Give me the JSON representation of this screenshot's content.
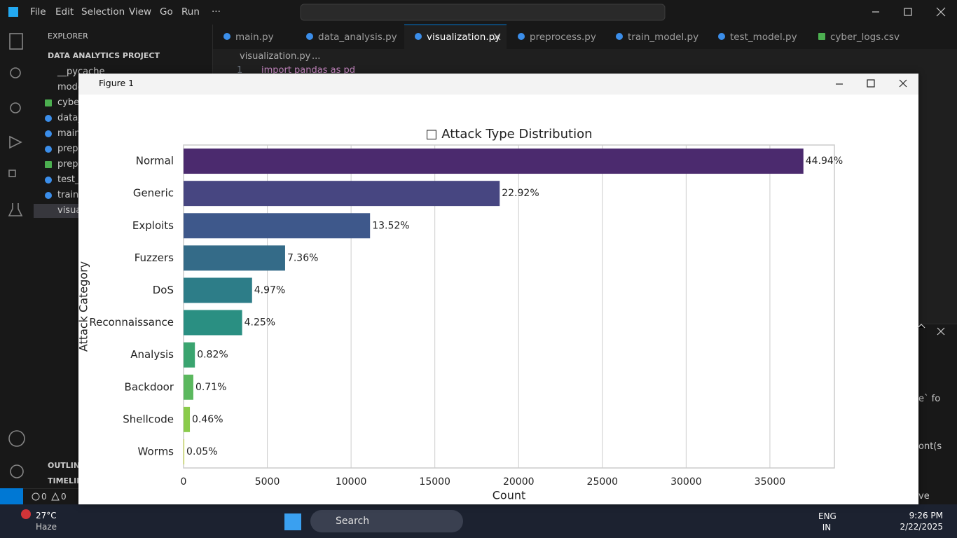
{
  "menu": [
    "File",
    "Edit",
    "Selection",
    "View",
    "Go",
    "Run",
    "···"
  ],
  "command_center": "DATA ANALYTICS PROJECT",
  "tabs": [
    "main.py",
    "data_analysis.py",
    "visualization.py",
    "preprocess.py",
    "train_model.py",
    "test_model.py",
    "cyber_logs.csv"
  ],
  "explorer": {
    "title": "EXPLORER",
    "project": "DATA ANALYTICS PROJECT",
    "items": [
      "__pycache__",
      "mode",
      "cyber",
      "data_",
      "main.",
      "prepr",
      "prepr",
      "test_",
      "train_",
      "visua"
    ],
    "outline": "OUTLINE",
    "timeline": "TIMELINE"
  },
  "breadcrumb": [
    "visualization.py",
    "..."
  ],
  "code": {
    "line_number": "1",
    "text": "import pandas as pd"
  },
  "terminal_fragments": [
    "e` fo",
    "ont(s",
    "ve"
  ],
  "status_bar": {
    "errors": "0",
    "warnings": "0"
  },
  "figure_window": {
    "title": "Figure 1"
  },
  "chart_data": {
    "type": "bar",
    "orientation": "horizontal",
    "title": "□ Attack Type Distribution",
    "x_label": "Count",
    "y_label": "Attack Category",
    "categories": [
      "Normal",
      "Generic",
      "Exploits",
      "Fuzzers",
      "DoS",
      "Reconnaissance",
      "Analysis",
      "Backdoor",
      "Shellcode",
      "Worms"
    ],
    "values": [
      37000,
      18871,
      11132,
      6062,
      4089,
      3496,
      677,
      583,
      378,
      44
    ],
    "value_labels": [
      "44.94%",
      "22.92%",
      "13.52%",
      "7.36%",
      "4.97%",
      "4.25%",
      "0.82%",
      "0.71%",
      "0.46%",
      "0.05%"
    ],
    "colors": [
      "#4b2a6e",
      "#474681",
      "#3e588b",
      "#346b88",
      "#2d7d88",
      "#2a8f82",
      "#3aa46f",
      "#5bb85e",
      "#8acb4b",
      "#c9dc3a"
    ],
    "xlim": [
      0,
      38850
    ],
    "xticks": [
      0,
      5000,
      10000,
      15000,
      20000,
      25000,
      30000,
      35000
    ],
    "grid": true
  },
  "taskbar": {
    "notification_badge": "1",
    "temperature": "27°C",
    "weather": "Haze",
    "search": "Search",
    "language": "ENG",
    "region": "IN",
    "time": "9:26 PM",
    "date": "2/22/2025"
  }
}
